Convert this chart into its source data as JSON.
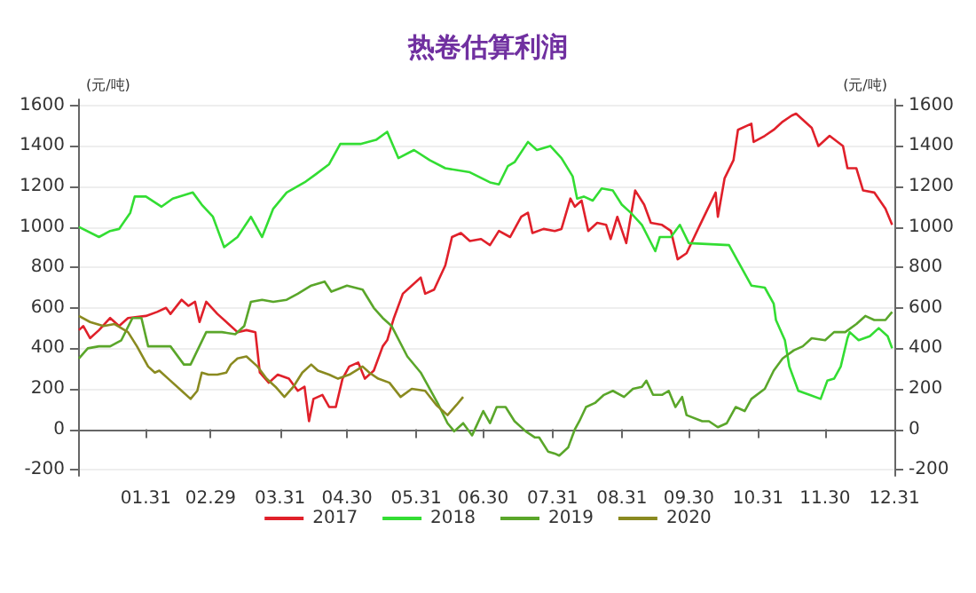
{
  "chart_data": {
    "type": "line",
    "title": "热卷估算利润",
    "ylabel": "(元/吨)",
    "y2label": "(元/吨)",
    "xlim": [
      "--01-01",
      "--12-31"
    ],
    "xticks": [
      {
        "value": "--01-31",
        "label": "01.31"
      },
      {
        "value": "--02-29",
        "label": "02.29"
      },
      {
        "value": "--03-31",
        "label": "03.31"
      },
      {
        "value": "--04-30",
        "label": "04.30"
      },
      {
        "value": "--05-31",
        "label": "05.31"
      },
      {
        "value": "--06-30",
        "label": "06.30"
      },
      {
        "value": "--07-31",
        "label": "07.31"
      },
      {
        "value": "--08-31",
        "label": "08.31"
      },
      {
        "value": "--09-30",
        "label": "09.30"
      },
      {
        "value": "--10-31",
        "label": "10.31"
      },
      {
        "value": "--11-30",
        "label": "11.30"
      },
      {
        "value": "--12-31",
        "label": "12.31"
      }
    ],
    "ylim": [
      -230,
      1630
    ],
    "yticks": [
      -200,
      0,
      200,
      400,
      600,
      800,
      1000,
      1200,
      1400,
      1600
    ],
    "y2lim": [
      -230,
      1630
    ],
    "y2ticks": [
      -200,
      0,
      200,
      400,
      600,
      800,
      1000,
      1200,
      1400,
      1600
    ],
    "grid": "y",
    "legend": "bottom",
    "marker": "none",
    "line_style": "solid",
    "series": [
      {
        "name": "2017",
        "color": "#e0202a",
        "x": [
          "--01-01",
          "--01-03",
          "--01-06",
          "--01-10",
          "--01-15",
          "--01-19",
          "--01-23",
          "--01-31",
          "--02-05",
          "--02-09",
          "--02-11",
          "--02-16",
          "--02-19",
          "--02-22",
          "--02-24",
          "--02-27",
          "--03-03",
          "--03-08",
          "--03-12",
          "--03-16",
          "--03-20",
          "--03-22",
          "--03-26",
          "--03-30",
          "--04-04",
          "--04-08",
          "--04-11",
          "--04-13",
          "--04-15",
          "--04-19",
          "--04-22",
          "--04-25",
          "--04-28",
          "--05-01",
          "--05-05",
          "--05-08",
          "--05-12",
          "--05-16",
          "--05-18",
          "--05-21",
          "--05-25",
          "--05-29",
          "--06-02",
          "--06-04",
          "--06-08",
          "--06-13",
          "--06-16",
          "--06-20",
          "--06-24",
          "--06-29",
          "--07-03",
          "--07-07",
          "--07-12",
          "--07-17",
          "--07-20",
          "--07-22",
          "--07-27",
          "--08-01",
          "--08-04",
          "--08-08",
          "--08-10",
          "--08-13",
          "--08-16",
          "--08-20",
          "--08-24",
          "--08-26",
          "--08-29",
          "--09-02",
          "--09-06",
          "--09-10",
          "--09-13",
          "--09-18",
          "--09-22",
          "--09-25",
          "--09-29",
          "--10-05",
          "--10-12",
          "--10-13",
          "--10-16",
          "--10-20",
          "--10-22",
          "--10-28",
          "--10-29",
          "--11-03",
          "--11-07",
          "--11-11",
          "--11-15",
          "--11-17",
          "--11-24",
          "--11-27",
          "--12-02",
          "--12-08",
          "--12-10",
          "--12-14",
          "--12-17",
          "--12-22",
          "--12-27",
          "--12-30"
        ],
        "values": [
          490,
          510,
          450,
          490,
          550,
          510,
          550,
          560,
          580,
          600,
          570,
          640,
          610,
          630,
          530,
          630,
          570,
          520,
          480,
          490,
          480,
          280,
          230,
          270,
          250,
          190,
          210,
          40,
          150,
          170,
          110,
          110,
          250,
          310,
          330,
          250,
          290,
          410,
          440,
          550,
          670,
          710,
          750,
          670,
          690,
          810,
          950,
          970,
          930,
          940,
          910,
          980,
          950,
          1050,
          1070,
          970,
          990,
          980,
          990,
          1140,
          1100,
          1130,
          980,
          1020,
          1010,
          940,
          1050,
          920,
          1180,
          1110,
          1020,
          1010,
          980,
          840,
          870,
          1010,
          1170,
          1050,
          1240,
          1330,
          1480,
          1510,
          1420,
          1450,
          1480,
          1520,
          1550,
          1560,
          1490,
          1400,
          1450,
          1400,
          1290,
          1290,
          1180,
          1170,
          1090,
          1010
        ]
      },
      {
        "name": "2018",
        "color": "#33dd33",
        "x": [
          "--01-01",
          "--01-10",
          "--01-15",
          "--01-19",
          "--01-24",
          "--01-26",
          "--01-31",
          "--02-07",
          "--02-12",
          "--02-21",
          "--02-25",
          "--03-01",
          "--03-06",
          "--03-12",
          "--03-18",
          "--03-23",
          "--03-28",
          "--04-03",
          "--04-11",
          "--04-16",
          "--04-22",
          "--04-27",
          "--05-06",
          "--05-13",
          "--05-18",
          "--05-23",
          "--05-30",
          "--06-06",
          "--06-13",
          "--06-24",
          "--07-03",
          "--07-07",
          "--07-11",
          "--07-14",
          "--07-20",
          "--07-24",
          "--07-30",
          "--08-04",
          "--08-09",
          "--08-11",
          "--08-14",
          "--08-18",
          "--08-22",
          "--08-27",
          "--08-31",
          "--09-04",
          "--09-09",
          "--09-15",
          "--09-17",
          "--09-22",
          "--09-26",
          "--09-30",
          "--10-18",
          "--10-22",
          "--10-28",
          "--11-03",
          "--11-07",
          "--11-08",
          "--11-12",
          "--11-14",
          "--11-18",
          "--11-23",
          "--11-28",
          "--12-01",
          "--12-04",
          "--12-07",
          "--12-10",
          "--12-11",
          "--12-15",
          "--12-20",
          "--12-24",
          "--12-28",
          "--12-30"
        ],
        "values": [
          1000,
          950,
          980,
          990,
          1070,
          1150,
          1150,
          1100,
          1140,
          1170,
          1110,
          1050,
          900,
          950,
          1050,
          950,
          1090,
          1170,
          1220,
          1260,
          1310,
          1410,
          1410,
          1430,
          1470,
          1340,
          1380,
          1330,
          1290,
          1270,
          1220,
          1210,
          1300,
          1320,
          1420,
          1380,
          1400,
          1340,
          1250,
          1140,
          1150,
          1130,
          1190,
          1180,
          1110,
          1070,
          1010,
          880,
          950,
          950,
          1010,
          920,
          910,
          830,
          710,
          700,
          620,
          540,
          440,
          310,
          190,
          170,
          150,
          240,
          250,
          310,
          450,
          480,
          440,
          460,
          500,
          460,
          400
        ]
      },
      {
        "name": "2019",
        "color": "#5aa62a",
        "x": [
          "--01-01",
          "--01-05",
          "--01-10",
          "--01-15",
          "--01-20",
          "--01-25",
          "--01-29",
          "--02-01",
          "--02-11",
          "--02-17",
          "--02-20",
          "--02-27",
          "--03-05",
          "--03-11",
          "--03-15",
          "--03-18",
          "--03-23",
          "--03-28",
          "--04-03",
          "--04-08",
          "--04-14",
          "--04-20",
          "--04-23",
          "--04-30",
          "--05-07",
          "--05-12",
          "--05-16",
          "--05-20",
          "--05-27",
          "--06-02",
          "--06-10",
          "--06-14",
          "--06-17",
          "--06-21",
          "--06-25",
          "--06-30",
          "--07-03",
          "--07-06",
          "--07-10",
          "--07-14",
          "--07-19",
          "--07-23",
          "--07-25",
          "--07-29",
          "--08-01",
          "--08-03",
          "--08-07",
          "--08-10",
          "--08-12",
          "--08-15",
          "--08-19",
          "--08-23",
          "--08-27",
          "--09-01",
          "--09-05",
          "--09-09",
          "--09-11",
          "--09-14",
          "--09-18",
          "--09-21",
          "--09-24",
          "--09-27",
          "--09-29",
          "--10-06",
          "--10-09",
          "--10-13",
          "--10-17",
          "--10-21",
          "--10-25",
          "--10-28",
          "--11-03",
          "--11-07",
          "--11-11",
          "--11-16",
          "--11-20",
          "--11-24",
          "--11-30",
          "--12-04",
          "--12-09",
          "--12-14",
          "--12-18",
          "--12-22",
          "--12-27",
          "--12-30"
        ],
        "values": [
          350,
          400,
          410,
          410,
          440,
          550,
          550,
          410,
          410,
          320,
          320,
          480,
          480,
          470,
          510,
          630,
          640,
          630,
          640,
          670,
          710,
          730,
          680,
          710,
          690,
          600,
          550,
          510,
          360,
          280,
          120,
          30,
          -10,
          30,
          -30,
          90,
          30,
          110,
          110,
          40,
          -10,
          -40,
          -40,
          -110,
          -120,
          -130,
          -90,
          0,
          40,
          110,
          130,
          170,
          190,
          160,
          200,
          210,
          240,
          170,
          170,
          190,
          110,
          160,
          70,
          40,
          40,
          10,
          30,
          110,
          90,
          150,
          200,
          290,
          350,
          390,
          410,
          450,
          440,
          480,
          480,
          520,
          560,
          540,
          540,
          580
        ]
      },
      {
        "name": "2020",
        "color": "#8a8a20",
        "x": [
          "--01-01",
          "--01-06",
          "--01-12",
          "--01-17",
          "--01-23",
          "--01-27",
          "--02-01",
          "--02-04",
          "--02-06",
          "--02-11",
          "--02-16",
          "--02-20",
          "--02-23",
          "--02-25",
          "--02-28",
          "--03-03",
          "--03-07",
          "--03-09",
          "--03-12",
          "--03-16",
          "--03-19",
          "--03-21",
          "--03-25",
          "--03-29",
          "--04-02",
          "--04-06",
          "--04-10",
          "--04-14",
          "--04-17",
          "--04-22",
          "--04-26",
          "--05-01",
          "--05-07",
          "--05-10",
          "--05-14",
          "--05-19",
          "--05-24",
          "--05-29",
          "--06-04",
          "--06-09",
          "--06-14",
          "--06-18",
          "--06-21"
        ],
        "values": [
          560,
          530,
          510,
          520,
          480,
          410,
          310,
          280,
          290,
          240,
          190,
          150,
          190,
          280,
          270,
          270,
          280,
          320,
          350,
          360,
          330,
          310,
          250,
          210,
          160,
          210,
          280,
          320,
          290,
          270,
          250,
          270,
          310,
          280,
          250,
          230,
          160,
          200,
          190,
          120,
          70,
          120,
          160
        ]
      }
    ]
  }
}
